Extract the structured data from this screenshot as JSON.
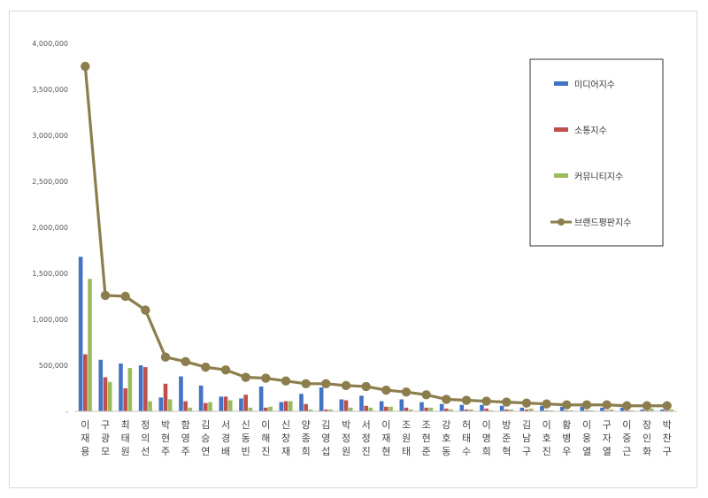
{
  "chart_data": {
    "type": "bar",
    "title": "",
    "xlabel": "",
    "ylabel": "",
    "ylim": [
      0,
      4000000
    ],
    "yticks": [
      {
        "value": 0,
        "label": "-"
      },
      {
        "value": 500000,
        "label": "500,000"
      },
      {
        "value": 1000000,
        "label": "1,000,000"
      },
      {
        "value": 1500000,
        "label": "1,500,000"
      },
      {
        "value": 2000000,
        "label": "2,000,000"
      },
      {
        "value": 2500000,
        "label": "2,500,000"
      },
      {
        "value": 3000000,
        "label": "3,000,000"
      },
      {
        "value": 3500000,
        "label": "3,500,000"
      },
      {
        "value": 4000000,
        "label": "4,000,000"
      }
    ],
    "grid": false,
    "legend_position": "top-right",
    "categories": [
      "이재용",
      "구광모",
      "최태원",
      "정의선",
      "박현주",
      "함영주",
      "김승연",
      "서경배",
      "신동빈",
      "이해진",
      "신창재",
      "양종희",
      "김영섭",
      "박정원",
      "서정진",
      "이재현",
      "조원태",
      "조현준",
      "강호동",
      "허태수",
      "이명희",
      "방준혁",
      "김남구",
      "이호진",
      "황병우",
      "이웅열",
      "구자열",
      "이중근",
      "장인화",
      "박찬구"
    ],
    "series": [
      {
        "name": "미디어지수",
        "kind": "bar",
        "color": "#4472C4",
        "values": [
          1680000,
          560000,
          520000,
          500000,
          150000,
          380000,
          280000,
          160000,
          140000,
          270000,
          100000,
          190000,
          260000,
          130000,
          170000,
          110000,
          130000,
          100000,
          80000,
          70000,
          70000,
          60000,
          40000,
          60000,
          50000,
          50000,
          40000,
          40000,
          20000,
          20000
        ]
      },
      {
        "name": "소통지수",
        "kind": "bar",
        "color": "#C0504D",
        "values": [
          620000,
          370000,
          250000,
          480000,
          300000,
          110000,
          90000,
          160000,
          180000,
          40000,
          110000,
          80000,
          20000,
          120000,
          60000,
          50000,
          40000,
          40000,
          30000,
          20000,
          30000,
          20000,
          20000,
          10000,
          10000,
          10000,
          10000,
          10000,
          10000,
          10000
        ]
      },
      {
        "name": "커뮤니티지수",
        "kind": "bar",
        "color": "#9BBB59",
        "values": [
          1440000,
          320000,
          470000,
          110000,
          130000,
          40000,
          100000,
          120000,
          40000,
          50000,
          110000,
          20000,
          20000,
          40000,
          40000,
          50000,
          20000,
          40000,
          20000,
          20000,
          10000,
          20000,
          30000,
          10000,
          10000,
          10000,
          20000,
          10000,
          30000,
          20000
        ]
      },
      {
        "name": "브랜드평판지수",
        "kind": "line",
        "color": "#8C7E4C",
        "values": [
          3750000,
          1260000,
          1250000,
          1100000,
          590000,
          540000,
          480000,
          450000,
          370000,
          360000,
          330000,
          300000,
          300000,
          280000,
          270000,
          230000,
          210000,
          180000,
          130000,
          120000,
          110000,
          100000,
          90000,
          80000,
          70000,
          70000,
          70000,
          60000,
          60000,
          60000
        ]
      }
    ]
  }
}
